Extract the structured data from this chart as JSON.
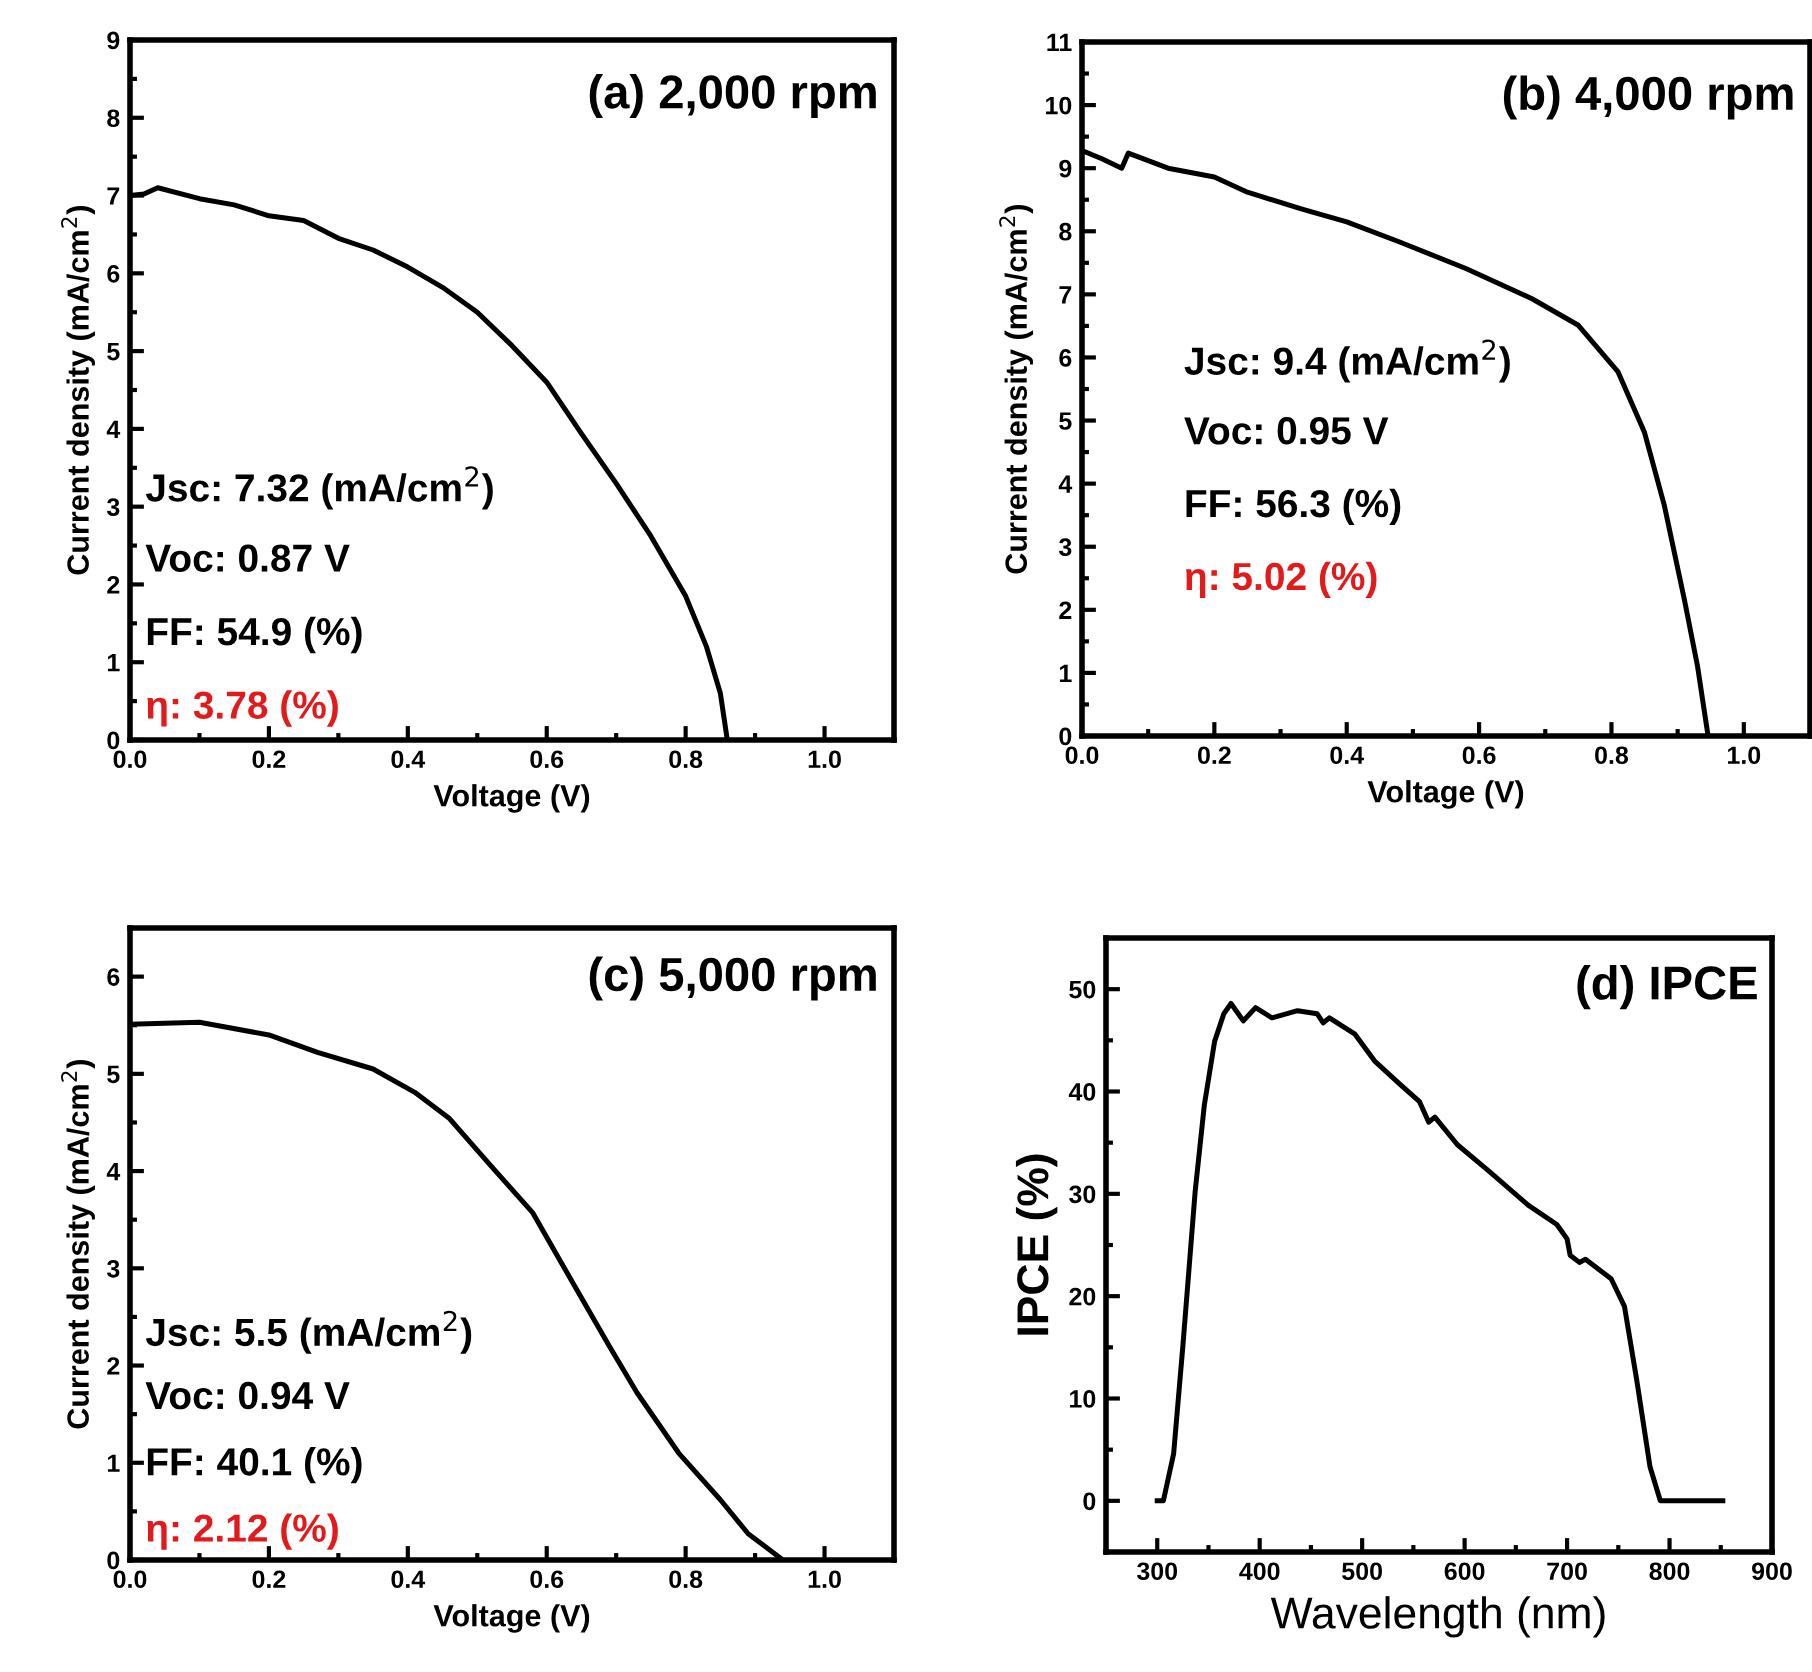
{
  "chart_data": [
    {
      "type": "line",
      "title": "(a) 2,000 rpm",
      "xlabel": "Voltage (V)",
      "ylabel": "Current density (mA/cm$^{2}$)",
      "annotations": [
        "Jsc: 7.32 (mA/cm$^{2}$)",
        "Voc: 0.87 V",
        "FF: 54.9 (%)",
        "η: 3.78 (%)"
      ],
      "xlim": [
        0,
        1.1
      ],
      "ylim": [
        0,
        9
      ],
      "xticks": [
        {
          "value": 0,
          "label": "0.0"
        },
        {
          "value": 0.1,
          "label": null
        },
        {
          "value": 0.2,
          "label": "0.2"
        },
        {
          "value": 0.3,
          "label": null
        },
        {
          "value": 0.4,
          "label": "0.4"
        },
        {
          "value": 0.5,
          "label": null
        },
        {
          "value": 0.6,
          "label": "0.6"
        },
        {
          "value": 0.7,
          "label": null
        },
        {
          "value": 0.8,
          "label": "0.8"
        },
        {
          "value": 0.9,
          "label": null
        },
        {
          "value": 1.0,
          "label": "1.0"
        }
      ],
      "yticks": [
        0,
        {
          "value": 0.5,
          "label": null
        },
        1,
        {
          "value": 1.5,
          "label": null
        },
        2,
        {
          "value": 2.5,
          "label": null
        },
        3,
        {
          "value": 3.5,
          "label": null
        },
        4,
        {
          "value": 4.5,
          "label": null
        },
        5,
        {
          "value": 5.5,
          "label": null
        },
        6,
        {
          "value": 6.5,
          "label": null
        },
        7,
        {
          "value": 7.5,
          "label": null
        },
        8,
        {
          "value": 8.5,
          "label": null
        },
        9
      ],
      "grid": false,
      "legend": false,
      "marker": "none",
      "line_style": "solid",
      "series": [
        {
          "color": "#000000",
          "x": [
            0,
            0.02,
            0.04,
            0.1,
            0.15,
            0.2,
            0.25,
            0.3,
            0.35,
            0.4,
            0.45,
            0.5,
            0.55,
            0.6,
            0.65,
            0.7,
            0.75,
            0.8,
            0.83,
            0.85,
            0.86
          ],
          "values": [
            7.0,
            7.02,
            7.1,
            6.96,
            6.88,
            6.74,
            6.68,
            6.45,
            6.3,
            6.08,
            5.82,
            5.5,
            5.07,
            4.6,
            3.94,
            3.3,
            2.62,
            1.85,
            1.2,
            0.6,
            0.0
          ]
        }
      ]
    },
    {
      "type": "line",
      "title": "(b) 4,000 rpm",
      "xlabel": "Voltage (V)",
      "ylabel": "Current density (mA/cm$^{2}$)",
      "annotations": [
        "Jsc: 9.4 (mA/cm$^{2}$)",
        "Voc: 0.95 V",
        "FF: 56.3 (%)",
        "η: 5.02 (%)"
      ],
      "xlim": [
        0,
        1.1
      ],
      "ylim": [
        0,
        11
      ],
      "xticks": [
        {
          "value": 0,
          "label": "0.0"
        },
        {
          "value": 0.1,
          "label": null
        },
        {
          "value": 0.2,
          "label": "0.2"
        },
        {
          "value": 0.3,
          "label": null
        },
        {
          "value": 0.4,
          "label": "0.4"
        },
        {
          "value": 0.5,
          "label": null
        },
        {
          "value": 0.6,
          "label": "0.6"
        },
        {
          "value": 0.7,
          "label": null
        },
        {
          "value": 0.8,
          "label": "0.8"
        },
        {
          "value": 0.9,
          "label": null
        },
        {
          "value": 1.0,
          "label": "1.0"
        }
      ],
      "yticks": [
        0,
        {
          "value": 0.5,
          "label": null
        },
        1,
        {
          "value": 1.5,
          "label": null
        },
        2,
        {
          "value": 2.5,
          "label": null
        },
        3,
        {
          "value": 3.5,
          "label": null
        },
        4,
        {
          "value": 4.5,
          "label": null
        },
        5,
        {
          "value": 5.5,
          "label": null
        },
        6,
        {
          "value": 6.5,
          "label": null
        },
        7,
        {
          "value": 7.5,
          "label": null
        },
        8,
        {
          "value": 8.5,
          "label": null
        },
        9,
        {
          "value": 9.5,
          "label": null
        },
        10,
        {
          "value": 10.5,
          "label": null
        },
        11
      ],
      "grid": false,
      "legend": false,
      "marker": "none",
      "line_style": "solid",
      "series": [
        {
          "color": "#000000",
          "x": [
            0,
            0.03,
            0.06,
            0.07,
            0.13,
            0.2,
            0.25,
            0.33,
            0.4,
            0.48,
            0.58,
            0.68,
            0.75,
            0.81,
            0.85,
            0.88,
            0.91,
            0.93,
            0.946
          ],
          "values": [
            9.28,
            9.15,
            9.0,
            9.24,
            9.0,
            8.86,
            8.62,
            8.36,
            8.15,
            7.83,
            7.41,
            6.93,
            6.51,
            5.77,
            4.81,
            3.65,
            2.17,
            1.11,
            0.0
          ]
        }
      ]
    },
    {
      "type": "line",
      "title": "(c) 5,000 rpm",
      "xlabel": "Voltage (V)",
      "ylabel": "Current density (mA/cm$^{2}$)",
      "annotations": [
        "Jsc: 5.5 (mA/cm$^{2}$)",
        "Voc: 0.94 V",
        "FF: 40.1 (%)",
        "η: 2.12 (%)"
      ],
      "xlim": [
        0,
        1.1
      ],
      "ylim": [
        0,
        6.5
      ],
      "xticks": [
        {
          "value": 0,
          "label": "0.0"
        },
        {
          "value": 0.1,
          "label": null
        },
        {
          "value": 0.2,
          "label": "0.2"
        },
        {
          "value": 0.3,
          "label": null
        },
        {
          "value": 0.4,
          "label": "0.4"
        },
        {
          "value": 0.5,
          "label": null
        },
        {
          "value": 0.6,
          "label": "0.6"
        },
        {
          "value": 0.7,
          "label": null
        },
        {
          "value": 0.8,
          "label": "0.8"
        },
        {
          "value": 0.9,
          "label": null
        },
        {
          "value": 1.0,
          "label": "1.0"
        }
      ],
      "yticks": [
        0,
        {
          "value": 0.5,
          "label": null
        },
        1,
        {
          "value": 1.5,
          "label": null
        },
        2,
        {
          "value": 2.5,
          "label": null
        },
        3,
        {
          "value": 3.5,
          "label": null
        },
        4,
        {
          "value": 4.5,
          "label": null
        },
        5,
        {
          "value": 5.5,
          "label": null
        },
        6
      ],
      "grid": false,
      "legend": false,
      "marker": "none",
      "line_style": "solid",
      "series": [
        {
          "color": "#000000",
          "x": [
            0,
            0.1,
            0.2,
            0.27,
            0.35,
            0.41,
            0.46,
            0.52,
            0.58,
            0.64,
            0.69,
            0.73,
            0.79,
            0.85,
            0.89,
            0.94
          ],
          "values": [
            5.51,
            5.53,
            5.4,
            5.22,
            5.05,
            4.81,
            4.54,
            4.05,
            3.57,
            2.82,
            2.2,
            1.72,
            1.1,
            0.62,
            0.27,
            0.0
          ]
        }
      ]
    },
    {
      "type": "line",
      "title": "(d) IPCE",
      "xlabel": "Wavelength (nm)",
      "ylabel": "IPCE (%)",
      "xlim": [
        250,
        900
      ],
      "ylim": [
        -5,
        55
      ],
      "xticks": [
        300,
        {
          "value": 350,
          "label": null
        },
        400,
        {
          "value": 450,
          "label": null
        },
        500,
        {
          "value": 550,
          "label": null
        },
        600,
        {
          "value": 650,
          "label": null
        },
        700,
        {
          "value": 750,
          "label": null
        },
        800,
        {
          "value": 850,
          "label": null
        },
        900
      ],
      "yticks": [
        0,
        {
          "value": 5,
          "label": null
        },
        10,
        {
          "value": 15,
          "label": null
        },
        20,
        {
          "value": 25,
          "label": null
        },
        30,
        {
          "value": 35,
          "label": null
        },
        40,
        {
          "value": 45,
          "label": null
        },
        50
      ],
      "grid": false,
      "legend": false,
      "marker": "none",
      "line_style": "solid",
      "series": [
        {
          "color": "#000000",
          "x": [
            300,
            306,
            316,
            325,
            337,
            346,
            356,
            365,
            372,
            384,
            396,
            412,
            437,
            456,
            462,
            468,
            493,
            512,
            537,
            556,
            565,
            571,
            593,
            624,
            662,
            690,
            700,
            703,
            712,
            718,
            743,
            756,
            768,
            781,
            791,
            852
          ],
          "values": [
            0,
            0,
            4.6,
            15.1,
            30.2,
            38.7,
            44.9,
            47.6,
            48.6,
            46.9,
            48.2,
            47.2,
            47.9,
            47.6,
            46.7,
            47.2,
            45.6,
            43.0,
            40.7,
            39.0,
            37.0,
            37.5,
            34.8,
            32.2,
            28.9,
            27.0,
            25.6,
            24.0,
            23.3,
            23.6,
            21.7,
            19.0,
            11.8,
            3.3,
            0,
            0
          ]
        }
      ]
    }
  ]
}
